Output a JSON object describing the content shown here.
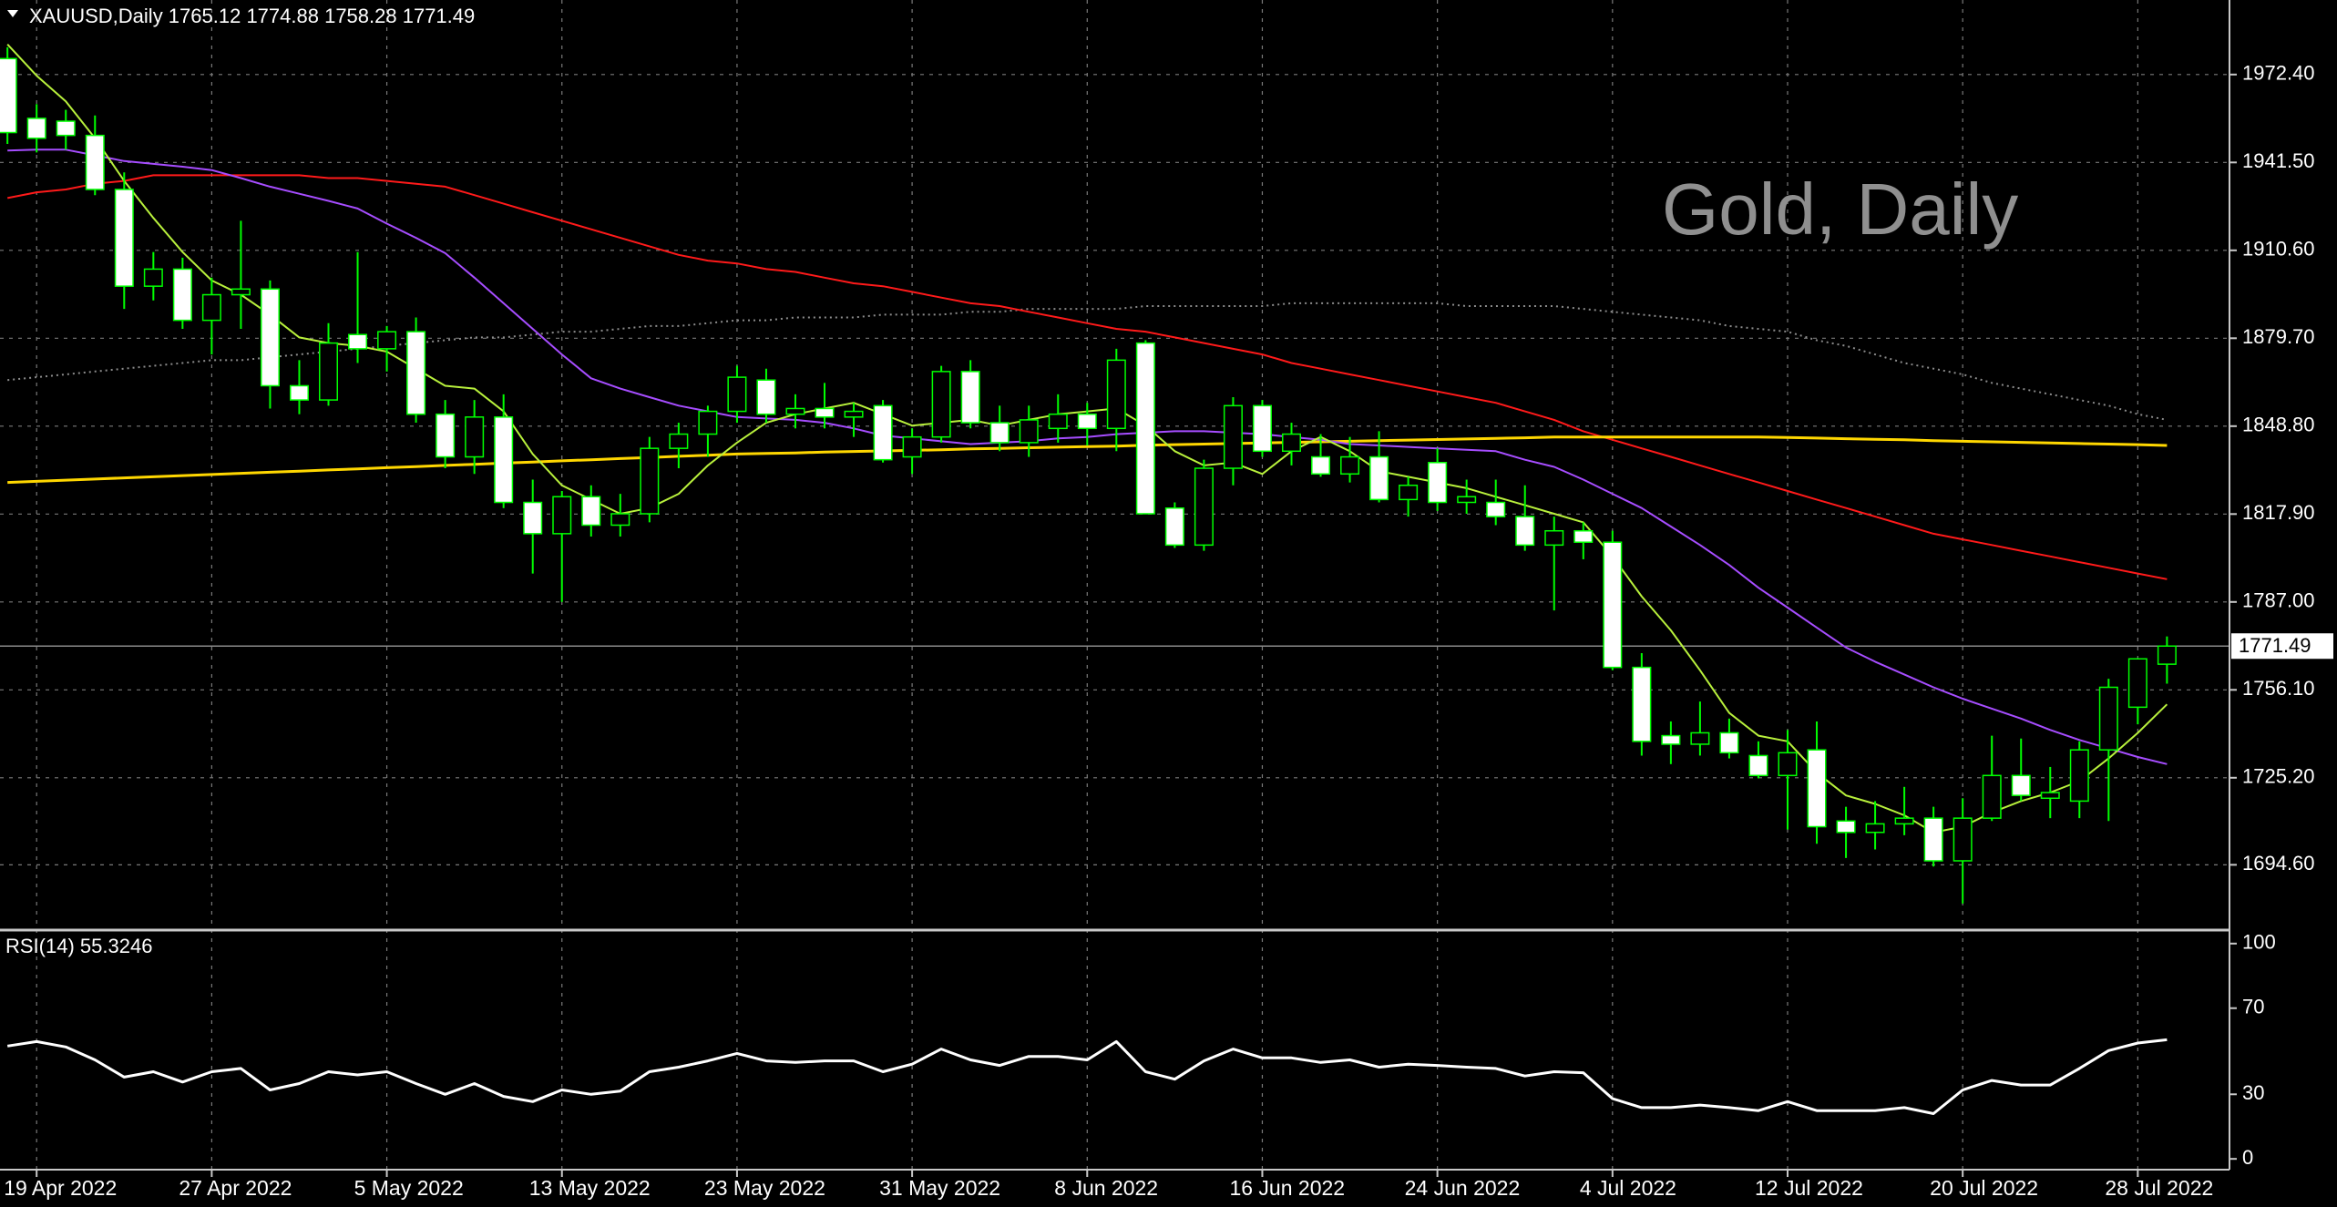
{
  "chart_data": [
    {
      "type": "candlestick",
      "title": "XAUUSD,Daily  1765.12 1774.88 1758.28 1771.49",
      "watermark": "Gold, Daily",
      "categories": [
        null,
        "19 Apr 2022",
        null,
        null,
        null,
        null,
        null,
        "27 Apr 2022",
        null,
        null,
        null,
        null,
        null,
        "5 May 2022",
        null,
        null,
        null,
        null,
        null,
        "13 May 2022",
        null,
        null,
        null,
        null,
        null,
        "23 May 2022",
        null,
        null,
        null,
        null,
        null,
        "31 May 2022",
        null,
        null,
        null,
        null,
        null,
        "8 Jun 2022",
        null,
        null,
        null,
        null,
        null,
        "16 Jun 2022",
        null,
        null,
        null,
        null,
        null,
        "24 Jun 2022",
        null,
        null,
        null,
        null,
        null,
        "4 Jul 2022",
        null,
        null,
        null,
        null,
        null,
        "12 Jul 2022",
        null,
        null,
        null,
        null,
        null,
        "20 Jul 2022",
        null,
        null,
        null,
        null,
        null,
        "28 Jul 2022",
        null
      ],
      "ohlc": [
        [
          1978,
          1982,
          1948,
          1952
        ],
        [
          1957,
          1962,
          1945,
          1950
        ],
        [
          1956,
          1960,
          1946,
          1951
        ],
        [
          1951,
          1958,
          1930,
          1932
        ],
        [
          1932,
          1938,
          1890,
          1898
        ],
        [
          1898,
          1910,
          1893,
          1904
        ],
        [
          1904,
          1908,
          1883,
          1886
        ],
        [
          1886,
          1901,
          1874,
          1895
        ],
        [
          1895,
          1921,
          1883,
          1897
        ],
        [
          1897,
          1900,
          1855,
          1863
        ],
        [
          1863,
          1872,
          1853,
          1858
        ],
        [
          1858,
          1885,
          1856,
          1878
        ],
        [
          1881,
          1910,
          1871,
          1876
        ],
        [
          1876,
          1884,
          1868,
          1882
        ],
        [
          1882,
          1887,
          1850,
          1853
        ],
        [
          1853,
          1858,
          1834,
          1838
        ],
        [
          1838,
          1858,
          1832,
          1852
        ],
        [
          1852,
          1860,
          1820,
          1822
        ],
        [
          1822,
          1830,
          1797,
          1811
        ],
        [
          1811,
          1826,
          1787,
          1824
        ],
        [
          1824,
          1828,
          1810,
          1814
        ],
        [
          1814,
          1825,
          1810,
          1818
        ],
        [
          1818,
          1845,
          1815,
          1841
        ],
        [
          1841,
          1850,
          1834,
          1846
        ],
        [
          1846,
          1856,
          1838,
          1854
        ],
        [
          1854,
          1870,
          1850,
          1866
        ],
        [
          1865,
          1869,
          1850,
          1853
        ],
        [
          1853,
          1860,
          1848,
          1855
        ],
        [
          1855,
          1864,
          1848,
          1852
        ],
        [
          1852,
          1857,
          1845,
          1854
        ],
        [
          1856,
          1858,
          1836,
          1837
        ],
        [
          1838,
          1848,
          1832,
          1845
        ],
        [
          1845,
          1870,
          1843,
          1868
        ],
        [
          1868,
          1872,
          1848,
          1850
        ],
        [
          1850,
          1856,
          1840,
          1843
        ],
        [
          1843,
          1856,
          1838,
          1851
        ],
        [
          1848,
          1860,
          1843,
          1853
        ],
        [
          1853,
          1857,
          1842,
          1848
        ],
        [
          1848,
          1876,
          1840,
          1872
        ],
        [
          1878,
          1879,
          1818,
          1818
        ],
        [
          1820,
          1822,
          1806,
          1807
        ],
        [
          1807,
          1837,
          1805,
          1834
        ],
        [
          1834,
          1859,
          1828,
          1856
        ],
        [
          1856,
          1858,
          1838,
          1840
        ],
        [
          1840,
          1850,
          1835,
          1846
        ],
        [
          1838,
          1846,
          1831,
          1832
        ],
        [
          1832,
          1845,
          1829,
          1838
        ],
        [
          1838,
          1847,
          1822,
          1823
        ],
        [
          1823,
          1831,
          1817,
          1828
        ],
        [
          1836,
          1841,
          1819,
          1822
        ],
        [
          1822,
          1830,
          1818,
          1824
        ],
        [
          1822,
          1830,
          1814,
          1817
        ],
        [
          1817,
          1828,
          1805,
          1807
        ],
        [
          1807,
          1817,
          1784,
          1812
        ],
        [
          1812,
          1815,
          1802,
          1808
        ],
        [
          1808,
          1812,
          1763,
          1764
        ],
        [
          1764,
          1769,
          1733,
          1738
        ],
        [
          1740,
          1745,
          1730,
          1737
        ],
        [
          1737,
          1752,
          1733,
          1741
        ],
        [
          1741,
          1746,
          1732,
          1734
        ],
        [
          1733,
          1738,
          1725,
          1726
        ],
        [
          1726,
          1742,
          1707,
          1734
        ],
        [
          1735,
          1745,
          1702,
          1708
        ],
        [
          1710,
          1715,
          1697,
          1706
        ],
        [
          1706,
          1717,
          1700,
          1709
        ],
        [
          1709,
          1722,
          1705,
          1711
        ],
        [
          1711,
          1715,
          1694,
          1696
        ],
        [
          1696,
          1718,
          1681,
          1711
        ],
        [
          1711,
          1740,
          1710,
          1726
        ],
        [
          1726,
          1739,
          1717,
          1719
        ],
        [
          1718,
          1729,
          1711,
          1720
        ],
        [
          1717,
          1738,
          1711,
          1735
        ],
        [
          1735,
          1760,
          1710,
          1757
        ],
        [
          1750,
          1767,
          1744,
          1767
        ],
        [
          1765.12,
          1774.88,
          1758.28,
          1771.49
        ]
      ],
      "up_color": "#000000",
      "down_color": "#ffffff",
      "wick_color": "#00ff00",
      "series": [
        {
          "color": "#8c8c8c",
          "dashed": true,
          "values": [
            1865,
            1866,
            1867,
            1868,
            1869,
            1870,
            1871,
            1872,
            1872,
            1873,
            1874,
            1875,
            1876,
            1877,
            1878,
            1879,
            1880,
            1880,
            1881,
            1882,
            1882,
            1883,
            1884,
            1884,
            1885,
            1886,
            1886,
            1887,
            1887,
            1887,
            1888,
            1888,
            1888,
            1889,
            1889,
            1890,
            1890,
            1890,
            1890,
            1891,
            1891,
            1891,
            1891,
            1891,
            1892,
            1892,
            1892,
            1892,
            1892,
            1892,
            1891,
            1891,
            1891,
            1891,
            1890,
            1889,
            1888,
            1887,
            1886,
            1884,
            1883,
            1882,
            1879,
            1877,
            1874,
            1871,
            1869,
            1867,
            1864,
            1862,
            1860,
            1858,
            1856,
            1853,
            1851
          ]
        },
        {
          "color": "#ff1a1a",
          "values": [
            1929,
            1931,
            1932,
            1934,
            1935,
            1937,
            1937,
            1937,
            1937,
            1937,
            1937,
            1936,
            1936,
            1935,
            1934,
            1933,
            1930,
            1927,
            1924,
            1921,
            1918,
            1915,
            1912,
            1909,
            1907,
            1906,
            1904,
            1903,
            1901,
            1899,
            1898,
            1896,
            1894,
            1892,
            1891,
            1889,
            1887,
            1885,
            1883,
            1882,
            1880,
            1878,
            1876,
            1874,
            1871,
            1869,
            1867,
            1865,
            1863,
            1861,
            1859,
            1857,
            1854,
            1851,
            1847,
            1844,
            1841,
            1838,
            1835,
            1832,
            1829,
            1826,
            1823,
            1820,
            1817,
            1814,
            1811,
            1809,
            1807,
            1805,
            1803,
            1801,
            1799,
            1797,
            1795
          ]
        },
        {
          "color": "#ffd700",
          "width": 3,
          "values": [
            1829.0,
            1829.4,
            1829.8,
            1830.2,
            1830.6,
            1831.0,
            1831.4,
            1831.8,
            1832.2,
            1832.6,
            1833.0,
            1833.4,
            1833.8,
            1834.2,
            1834.6,
            1835.0,
            1835.4,
            1835.8,
            1836.2,
            1836.6,
            1837.0,
            1837.4,
            1837.8,
            1838.2,
            1838.6,
            1839.0,
            1839.2,
            1839.4,
            1839.7,
            1839.9,
            1840.1,
            1840.3,
            1840.5,
            1840.8,
            1841.0,
            1841.2,
            1841.4,
            1841.6,
            1841.8,
            1842.1,
            1842.3,
            1842.5,
            1842.7,
            1842.9,
            1843.1,
            1843.3,
            1843.5,
            1843.7,
            1843.9,
            1844.1,
            1844.3,
            1844.5,
            1844.7,
            1845.0,
            1845.0,
            1845.0,
            1845.0,
            1845.0,
            1845.0,
            1845.0,
            1845.0,
            1844.8,
            1844.6,
            1844.4,
            1844.2,
            1844.0,
            1843.7,
            1843.5,
            1843.3,
            1843.1,
            1842.9,
            1842.7,
            1842.5,
            1842.3,
            1842.0
          ]
        },
        {
          "color": "#a64dff",
          "values": [
            1945.7,
            1946,
            1946,
            1944,
            1942,
            1941,
            1940,
            1938.8,
            1936,
            1933,
            1930.5,
            1928,
            1925.3,
            1920,
            1915,
            1909.6,
            1901,
            1892,
            1883,
            1874,
            1865.6,
            1862,
            1859,
            1856,
            1854,
            1852,
            1851.5,
            1851,
            1850,
            1848,
            1845.5,
            1844.5,
            1843.5,
            1842.5,
            1843,
            1843.5,
            1844.5,
            1845,
            1846,
            1846.5,
            1847,
            1847,
            1846.5,
            1846,
            1845,
            1844,
            1842.5,
            1842,
            1841.5,
            1841,
            1840.5,
            1840,
            1837,
            1834.5,
            1830,
            1825,
            1820,
            1813.5,
            1807,
            1800,
            1792,
            1785,
            1778,
            1771,
            1766,
            1761.5,
            1757,
            1753,
            1749.5,
            1746,
            1742,
            1738.5,
            1735.5,
            1732.5,
            1730
          ]
        },
        {
          "color": "#b8f03c",
          "values": [
            1983,
            1972,
            1963,
            1950,
            1935,
            1922,
            1910,
            1900,
            1895,
            1888,
            1880,
            1878,
            1877,
            1875,
            1869,
            1863,
            1862,
            1854,
            1839,
            1828,
            1823,
            1818,
            1820,
            1825,
            1835,
            1843,
            1850,
            1853,
            1855,
            1857,
            1853,
            1849,
            1850,
            1851,
            1849,
            1851,
            1853,
            1854,
            1855,
            1849,
            1840,
            1835,
            1836,
            1832,
            1840,
            1845,
            1840,
            1833,
            1831,
            1829,
            1827,
            1824,
            1821,
            1818,
            1815,
            1803,
            1789,
            1777,
            1763,
            1748,
            1740,
            1738,
            1727,
            1719,
            1716,
            1712,
            1706,
            1708,
            1713,
            1717,
            1720,
            1724,
            1732,
            1741,
            1751
          ]
        }
      ],
      "ylim": [
        1672.3,
        1998.6
      ],
      "yticks": [
        {
          "value": 1694.6,
          "label": "1694.60"
        },
        {
          "value": 1725.2,
          "label": "1725.20"
        },
        {
          "value": 1756.1,
          "label": "1756.10"
        },
        {
          "value": 1787,
          "label": "1787.00"
        },
        {
          "value": 1817.9,
          "label": "1817.90"
        },
        {
          "value": 1848.8,
          "label": "1848.80"
        },
        {
          "value": 1879.7,
          "label": "1879.70"
        },
        {
          "value": 1910.6,
          "label": "1910.60"
        },
        {
          "value": 1941.5,
          "label": "1941.50"
        },
        {
          "value": 1972.4,
          "label": "1972.40"
        }
      ],
      "grid": true
    },
    {
      "type": "line",
      "title": "RSI(14) 55.3246",
      "series": [
        {
          "color": "#ffffff",
          "width": 3,
          "values": [
            52.4,
            54.5,
            52,
            46,
            38,
            40.5,
            35.7,
            40.5,
            42,
            32,
            35,
            40.5,
            39,
            40.5,
            35,
            30,
            35,
            29,
            26.6,
            32,
            30,
            31.5,
            40.5,
            42.6,
            45.5,
            49,
            45.5,
            44.8,
            45.5,
            45.5,
            40.5,
            44,
            51,
            46,
            43.4,
            47.6,
            47.6,
            46,
            54.5,
            40.5,
            37,
            45.5,
            51,
            46.9,
            46.9,
            44.8,
            46,
            42.6,
            44,
            43.4,
            42.6,
            42,
            38.5,
            40.5,
            40,
            28,
            23.8,
            23.8,
            25,
            23.8,
            22.4,
            26.6,
            22.4,
            22.4,
            22.4,
            23.8,
            21,
            32,
            36.4,
            34.3,
            34.3,
            42,
            50.3,
            53.8,
            55.3246
          ]
        }
      ],
      "ylim": [
        -5,
        105
      ],
      "yticks": [
        0,
        30,
        70,
        100
      ]
    }
  ]
}
